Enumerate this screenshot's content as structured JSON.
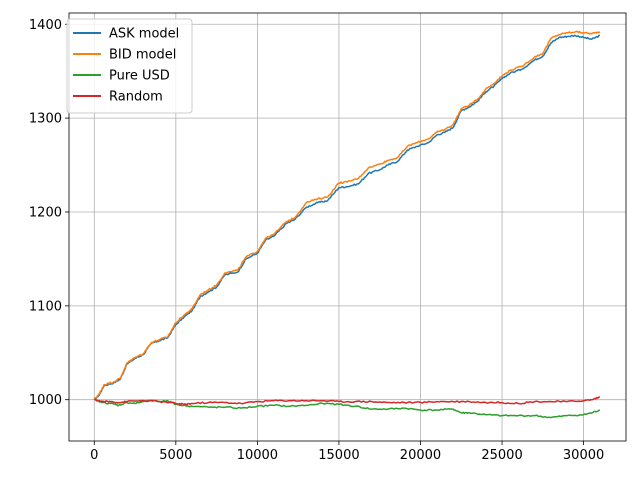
{
  "chart_data": {
    "type": "line",
    "title": "",
    "xlabel": "",
    "ylabel": "",
    "xlim": [
      -1550,
      32600
    ],
    "ylim": [
      956,
      1412
    ],
    "xticks": [
      0,
      5000,
      10000,
      15000,
      20000,
      25000,
      30000
    ],
    "yticks": [
      1000,
      1100,
      1200,
      1300,
      1400
    ],
    "grid": true,
    "legend_position": "top-left",
    "series": [
      {
        "name": "ASK model",
        "color": "#1f77b4",
        "x": [
          0,
          300,
          600,
          1200,
          1600,
          2000,
          2500,
          3000,
          3500,
          4000,
          4500,
          5000,
          5500,
          6000,
          6500,
          7000,
          7500,
          8000,
          8800,
          9300,
          10000,
          10500,
          11000,
          11800,
          12300,
          13000,
          13700,
          14300,
          15000,
          15500,
          16200,
          16800,
          17500,
          18000,
          18600,
          19200,
          19800,
          20500,
          21000,
          21500,
          22000,
          22500,
          23000,
          23500,
          24000,
          24500,
          25000,
          25500,
          26200,
          27000,
          27500,
          28000,
          28500,
          29000,
          29500,
          30000,
          30500,
          31000
        ],
        "y": [
          1000,
          1005,
          1015,
          1018,
          1022,
          1038,
          1044,
          1048,
          1060,
          1063,
          1066,
          1080,
          1088,
          1095,
          1110,
          1115,
          1120,
          1133,
          1136,
          1150,
          1156,
          1170,
          1174,
          1188,
          1192,
          1205,
          1210,
          1212,
          1226,
          1227,
          1230,
          1241,
          1245,
          1250,
          1254,
          1266,
          1270,
          1274,
          1282,
          1285,
          1290,
          1308,
          1312,
          1318,
          1328,
          1334,
          1342,
          1348,
          1352,
          1362,
          1366,
          1380,
          1386,
          1387,
          1388,
          1386,
          1384,
          1388
        ]
      },
      {
        "name": "BID model",
        "color": "#ff7f0e",
        "x": [
          0,
          300,
          600,
          1200,
          1600,
          2000,
          2500,
          3000,
          3500,
          4000,
          4500,
          5000,
          5500,
          6000,
          6500,
          7000,
          7500,
          8000,
          8800,
          9300,
          10000,
          10500,
          11000,
          11800,
          12300,
          13000,
          13700,
          14300,
          15000,
          15500,
          16200,
          16800,
          17500,
          18000,
          18600,
          19200,
          19800,
          20500,
          21000,
          21500,
          22000,
          22500,
          23000,
          23500,
          24000,
          24500,
          25000,
          25500,
          26200,
          27000,
          27500,
          28000,
          28500,
          29000,
          29500,
          30000,
          30500,
          31000
        ],
        "y": [
          1000,
          1006,
          1016,
          1019,
          1023,
          1039,
          1045,
          1049,
          1061,
          1064,
          1067,
          1082,
          1090,
          1097,
          1112,
          1117,
          1122,
          1135,
          1138,
          1152,
          1158,
          1172,
          1176,
          1190,
          1194,
          1210,
          1214,
          1216,
          1231,
          1232,
          1236,
          1247,
          1251,
          1255,
          1258,
          1270,
          1274,
          1278,
          1285,
          1288,
          1293,
          1310,
          1314,
          1320,
          1331,
          1337,
          1345,
          1351,
          1355,
          1365,
          1369,
          1385,
          1389,
          1391,
          1392,
          1391,
          1390,
          1392
        ]
      },
      {
        "name": "Pure USD",
        "color": "#2ca02c",
        "x": [
          0,
          500,
          1000,
          1500,
          2000,
          2500,
          3000,
          3500,
          4000,
          4500,
          5000,
          5500,
          6000,
          7000,
          8000,
          9000,
          10000,
          11000,
          12000,
          13000,
          14000,
          15000,
          16000,
          17000,
          18000,
          19000,
          20000,
          21000,
          22000,
          22500,
          23000,
          24000,
          25000,
          26000,
          27000,
          28000,
          29000,
          30000,
          30500,
          31000
        ],
        "y": [
          1000,
          997,
          996,
          994,
          997,
          996,
          998,
          999,
          998,
          999,
          995,
          994,
          993,
          992,
          992,
          991,
          993,
          994,
          993,
          994,
          996,
          995,
          993,
          990,
          990,
          991,
          989,
          989,
          990,
          986,
          986,
          984,
          983,
          983,
          983,
          981,
          983,
          984,
          986,
          989
        ]
      },
      {
        "name": "Random",
        "color": "#d62728",
        "x": [
          0,
          500,
          1000,
          1500,
          2000,
          3000,
          4000,
          5000,
          5500,
          6000,
          7000,
          8000,
          9000,
          10000,
          11000,
          12000,
          13000,
          14000,
          15000,
          16000,
          17000,
          18000,
          19000,
          20000,
          21000,
          22000,
          23000,
          24000,
          25000,
          26000,
          27000,
          28000,
          29000,
          30000,
          30500,
          31000
        ],
        "y": [
          1000,
          998,
          998,
          997,
          998,
          999,
          998,
          996,
          995,
          996,
          997,
          997,
          996,
          998,
          999,
          999,
          999,
          999,
          998,
          998,
          998,
          997,
          997,
          997,
          998,
          998,
          998,
          997,
          997,
          996,
          998,
          998,
          998,
          999,
          1000,
          1003
        ]
      }
    ]
  }
}
